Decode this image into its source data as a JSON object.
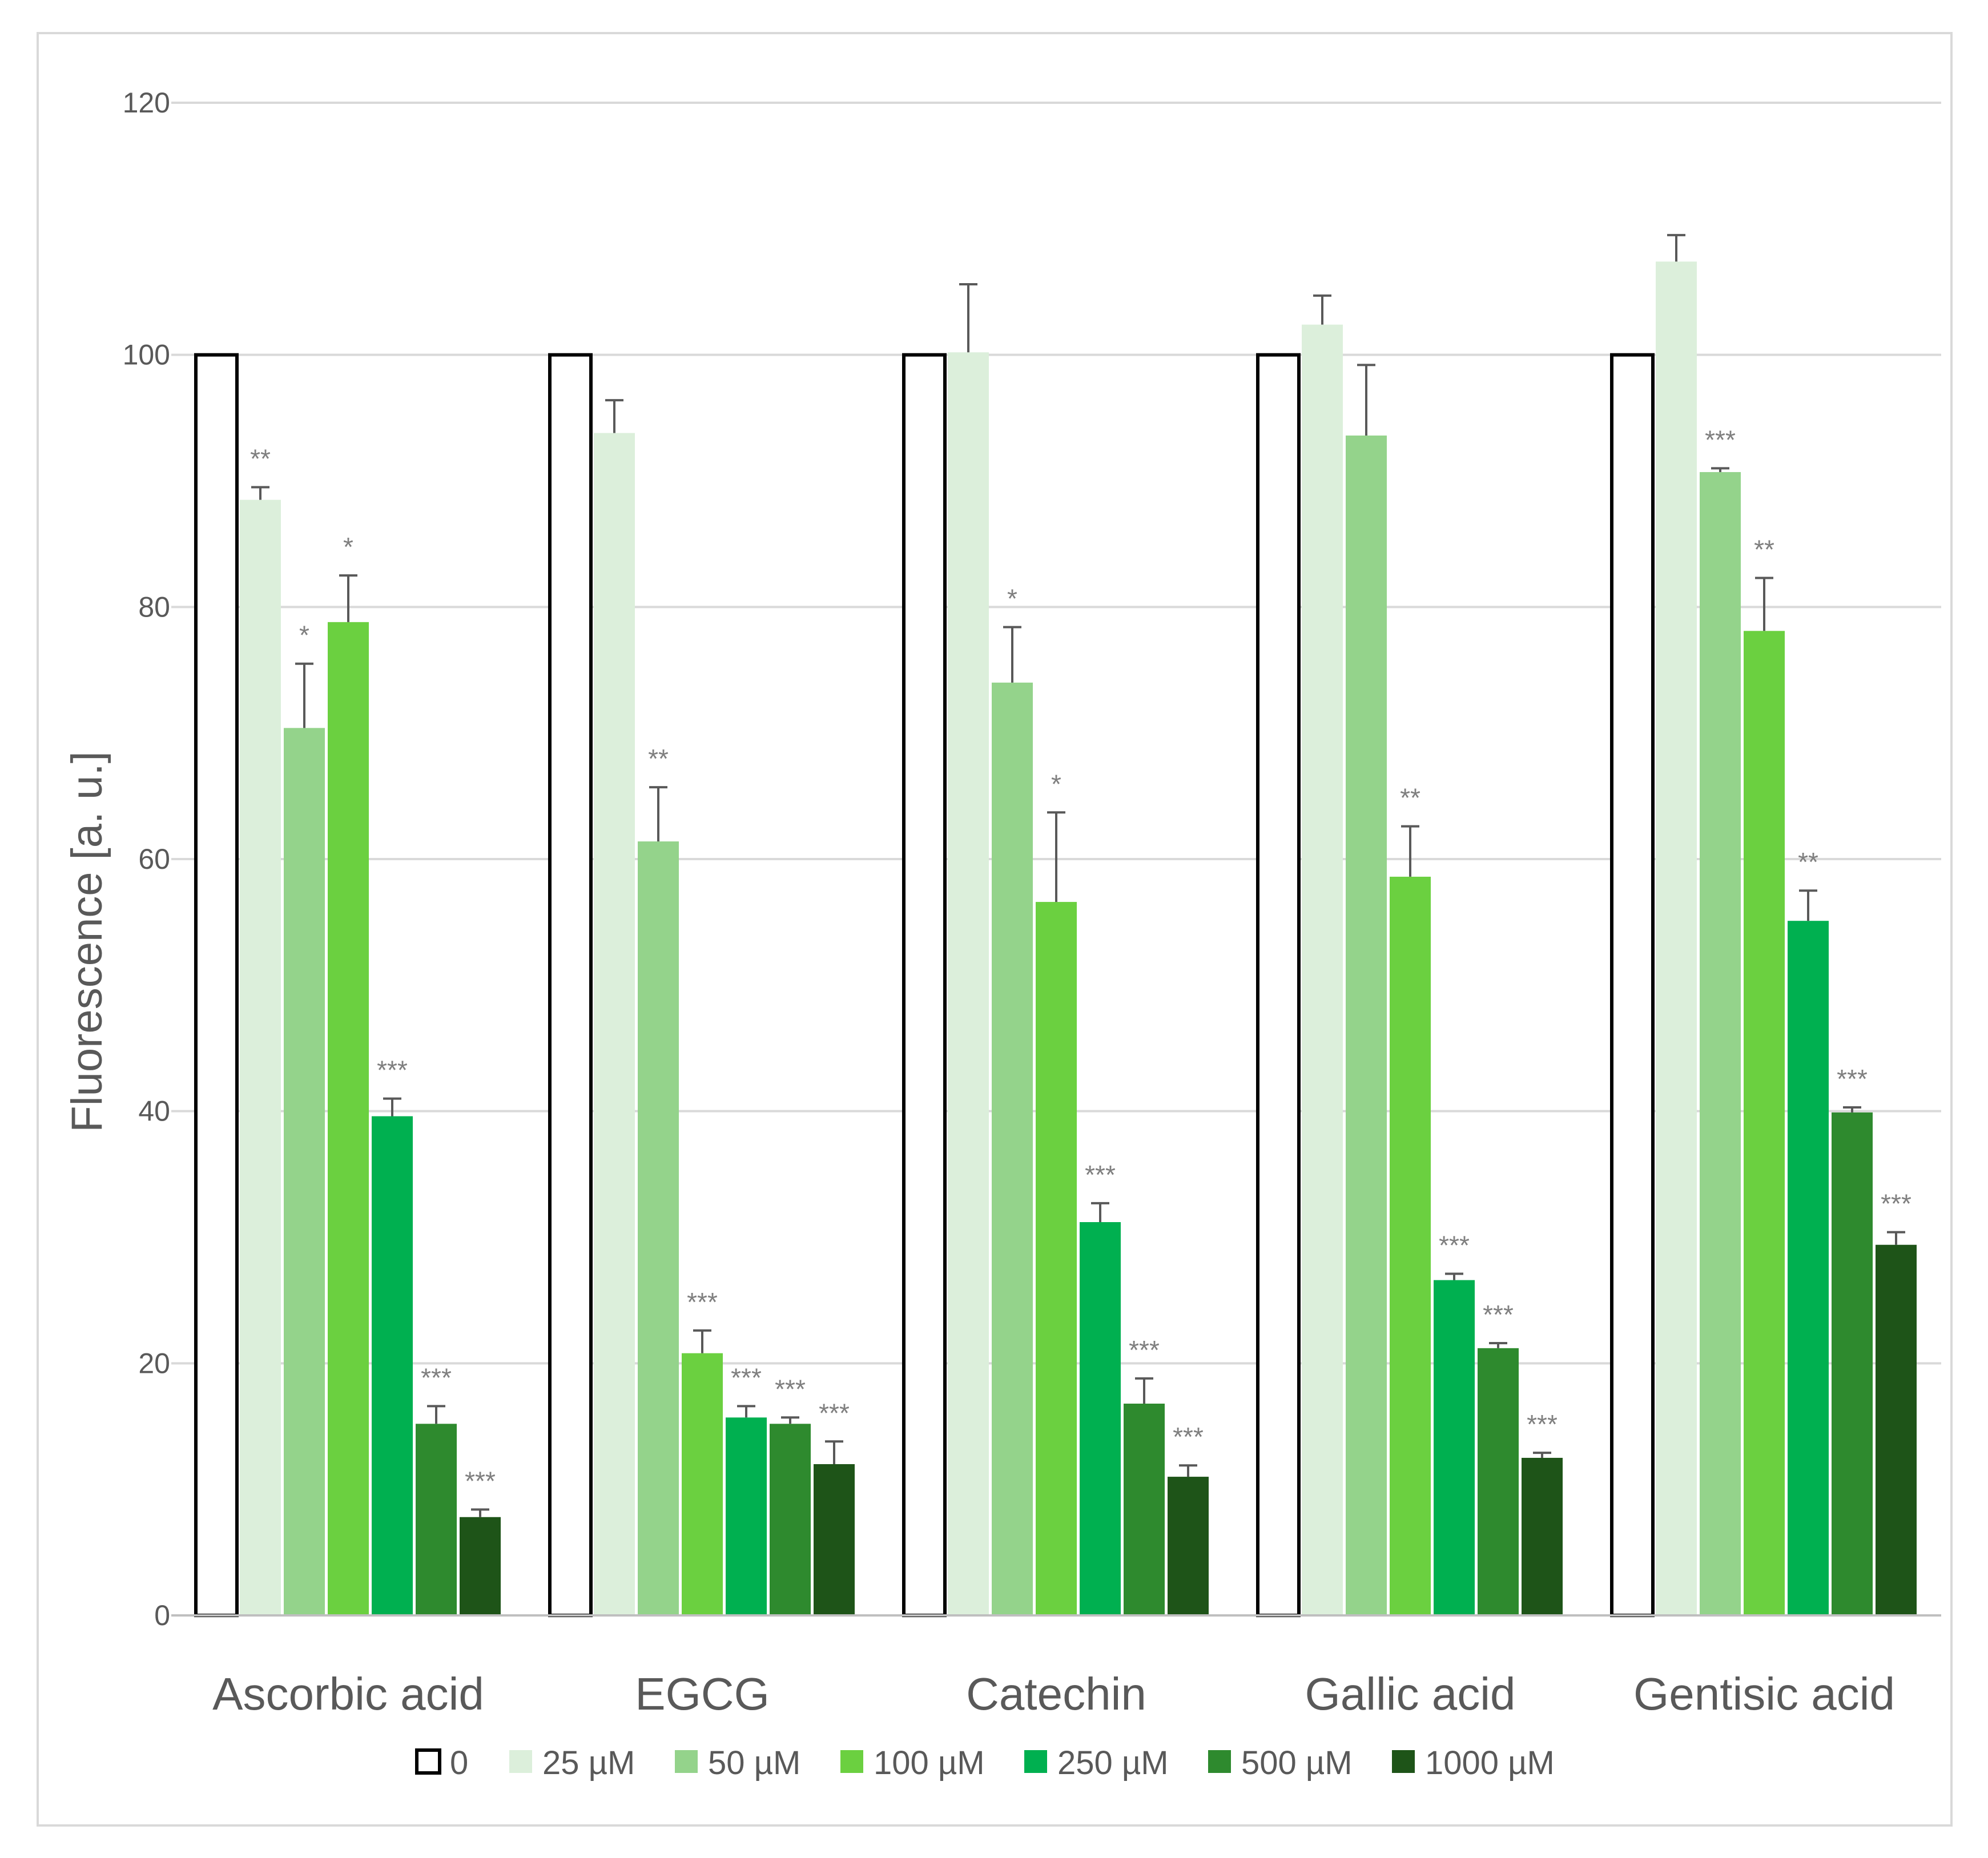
{
  "chart_data": {
    "type": "bar",
    "title": "",
    "xlabel": "",
    "ylabel": "Fluorescence  [a. u.]",
    "ylim": [
      0,
      120
    ],
    "yticks": [
      0,
      20,
      40,
      60,
      80,
      100,
      120
    ],
    "grid": true,
    "legend_position": "bottom",
    "categories": [
      "Ascorbic acid",
      "EGCG",
      "Catechin",
      "Gallic acid",
      "Gentisic acid"
    ],
    "series": [
      {
        "name": "0",
        "color": "#ffffff",
        "edge": "#000000",
        "values": [
          100,
          100,
          100,
          100,
          100
        ],
        "errors": [
          0,
          0,
          0,
          0,
          0
        ],
        "sig": [
          "",
          "",
          "",
          "",
          ""
        ]
      },
      {
        "name": "25 µM",
        "color": "#dcefdb",
        "values": [
          88.5,
          93.8,
          100.2,
          102.4,
          107.4
        ],
        "errors": [
          1.0,
          2.6,
          5.4,
          2.3,
          2.1
        ],
        "sig": [
          "**",
          "",
          "",
          "",
          ""
        ]
      },
      {
        "name": "50 µM",
        "color": "#94d38b",
        "values": [
          70.4,
          61.4,
          74.0,
          93.6,
          90.7
        ],
        "errors": [
          5.1,
          4.3,
          4.4,
          5.6,
          0.3
        ],
        "sig": [
          "*",
          "**",
          "*",
          "",
          "***"
        ]
      },
      {
        "name": "100 µM",
        "color": "#6bd040",
        "values": [
          78.8,
          20.8,
          56.6,
          58.6,
          78.1
        ],
        "errors": [
          3.7,
          1.8,
          7.1,
          4.0,
          4.2
        ],
        "sig": [
          "*",
          "***",
          "*",
          "**",
          "**"
        ]
      },
      {
        "name": "250 µM",
        "color": "#00b050",
        "values": [
          39.6,
          15.7,
          31.2,
          26.6,
          55.1
        ],
        "errors": [
          1.4,
          0.9,
          1.5,
          0.5,
          2.4
        ],
        "sig": [
          "***",
          "***",
          "***",
          "***",
          "**"
        ]
      },
      {
        "name": "500 µM",
        "color": "#2e8a2e",
        "values": [
          15.2,
          15.2,
          16.8,
          21.2,
          39.9
        ],
        "errors": [
          1.4,
          0.5,
          2.0,
          0.4,
          0.4
        ],
        "sig": [
          "***",
          "***",
          "***",
          "***",
          "***"
        ]
      },
      {
        "name": "1000 µM",
        "color": "#1e5418",
        "values": [
          7.8,
          12.0,
          11.0,
          12.5,
          29.4
        ],
        "errors": [
          0.6,
          1.8,
          0.9,
          0.4,
          1.0
        ],
        "sig": [
          "***",
          "***",
          "***",
          "***",
          "***"
        ]
      }
    ]
  }
}
